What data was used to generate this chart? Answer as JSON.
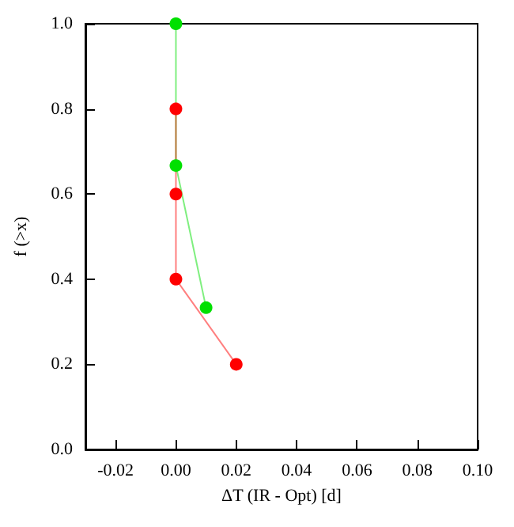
{
  "chart_data": {
    "type": "line",
    "xlabel": "ΔT (IR - Opt) [d]",
    "ylabel": "f (>x)",
    "series": [
      {
        "color": "#00e000",
        "x": [
          0,
          0,
          0.01
        ],
        "values": [
          1.0,
          0.667,
          0.333
        ]
      },
      {
        "color": "#ff0000",
        "x": [
          0,
          0,
          0,
          0.02
        ],
        "values": [
          0.8,
          0.6,
          0.4,
          0.2
        ]
      }
    ],
    "xlim": [
      -0.03,
      0.1
    ],
    "xticks": [
      -0.02,
      {
        "value": 0,
        "label": "0.00"
      },
      0.02,
      0.04,
      0.06,
      0.08,
      {
        "value": 0.1,
        "label": "0.10"
      }
    ],
    "ylim": [
      0,
      1
    ],
    "yticks": [
      {
        "value": 0,
        "label": "0.0"
      },
      0.2,
      0.4,
      0.6,
      0.8,
      {
        "value": 1,
        "label": "1.0"
      }
    ],
    "grid": false,
    "marker": "circle",
    "line_style": "solid"
  }
}
